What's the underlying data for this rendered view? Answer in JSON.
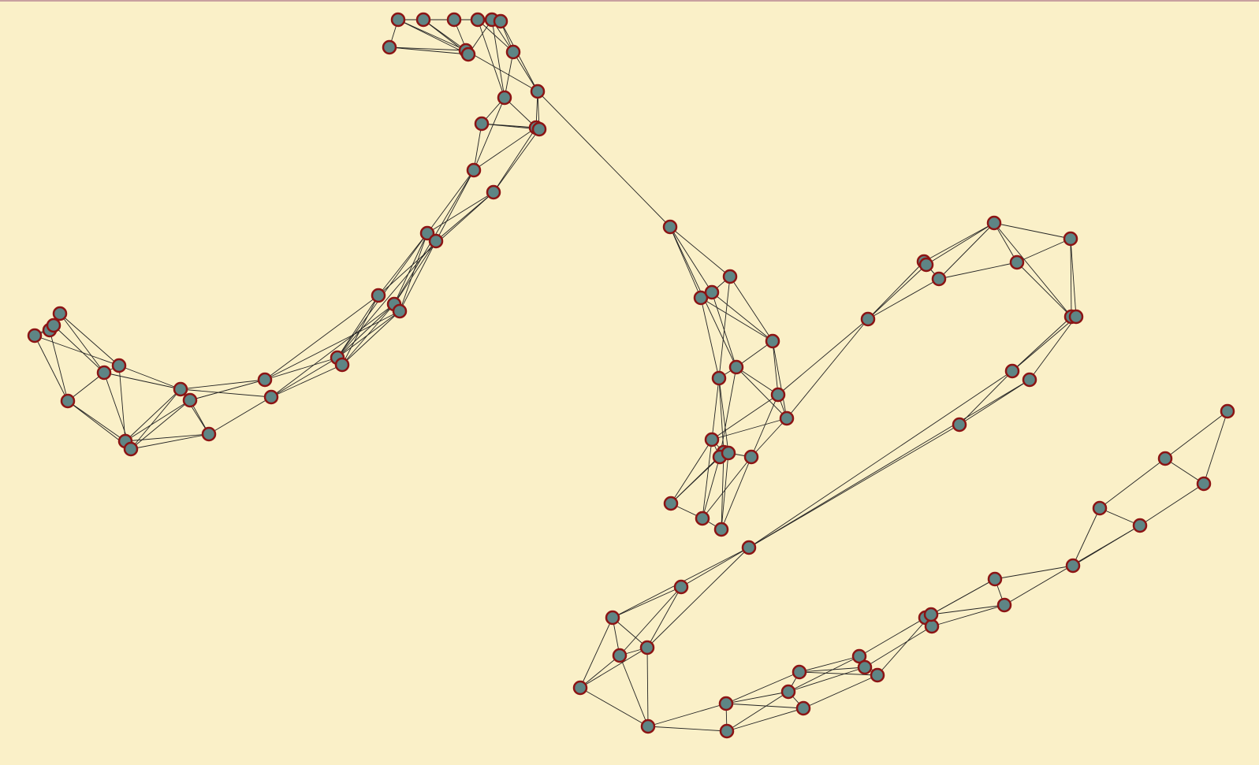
{
  "diagram": {
    "type": "node-link graph",
    "colors": {
      "background": "#faf0c8",
      "node_fill": "#5e8585",
      "node_stroke": "#8c1414",
      "edge": "#222222"
    },
    "node_count": 120,
    "edge_count": 259
  }
}
